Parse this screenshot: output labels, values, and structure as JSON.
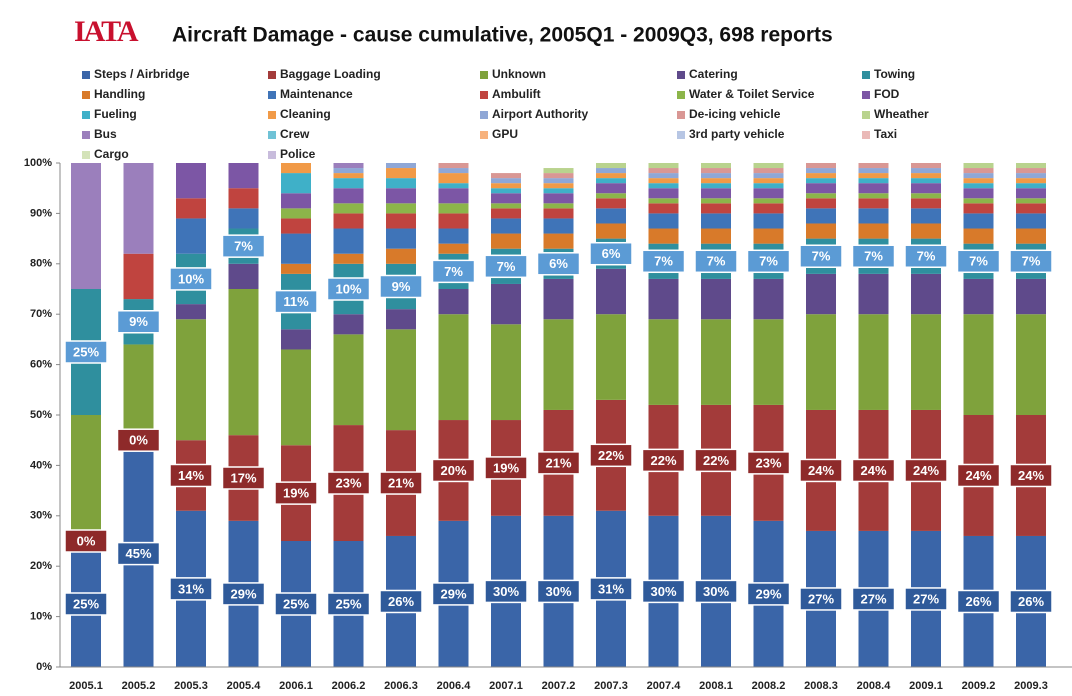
{
  "logo": "IATA",
  "chart_data": {
    "type": "stacked_bar",
    "title": "Aircraft Damage - cause cumulative, 2005Q1 - 2009Q3, 698 reports",
    "categories": [
      "2005.1",
      "2005.2",
      "2005.3",
      "2005.4",
      "2006.1",
      "2006.2",
      "2006.3",
      "2006.4",
      "2007.1",
      "2007.2",
      "2007.3",
      "2007.4",
      "2008.1",
      "2008.2",
      "2008.3",
      "2008.4",
      "2009.1",
      "2009.2",
      "2009.3"
    ],
    "ylim": [
      0,
      100
    ],
    "yticks": [
      {
        "value": 0,
        "label": "0%"
      },
      {
        "value": 10,
        "label": "10%"
      },
      {
        "value": 20,
        "label": "20%"
      },
      {
        "value": 30,
        "label": "30%"
      },
      {
        "value": 40,
        "label": "40%"
      },
      {
        "value": 50,
        "label": "50%"
      },
      {
        "value": 60,
        "label": "60%"
      },
      {
        "value": 70,
        "label": "70%"
      },
      {
        "value": 80,
        "label": "80%"
      },
      {
        "value": 90,
        "label": "90%"
      },
      {
        "value": 100,
        "label": "100%"
      }
    ],
    "series": [
      {
        "name": "Steps / Airbridge",
        "color": "#3a65a8",
        "label_color": "#2f5a9a",
        "values": [
          25,
          45,
          31,
          29,
          25,
          25,
          26,
          29,
          30,
          30,
          31,
          30,
          30,
          29,
          27,
          27,
          27,
          26,
          26
        ],
        "value_labels": [
          "25%",
          "45%",
          "31%",
          "29%",
          "25%",
          "25%",
          "26%",
          "29%",
          "30%",
          "30%",
          "31%",
          "30%",
          "30%",
          "29%",
          "27%",
          "27%",
          "27%",
          "26%",
          "26%"
        ]
      },
      {
        "name": "Baggage Loading",
        "color": "#a33b3a",
        "label_color": "#8e2a2a",
        "values": [
          0,
          0,
          14,
          17,
          19,
          23,
          21,
          20,
          19,
          21,
          22,
          22,
          22,
          23,
          24,
          24,
          24,
          24,
          24
        ],
        "value_labels": [
          "0%",
          "0%",
          "14%",
          "17%",
          "19%",
          "23%",
          "21%",
          "20%",
          "19%",
          "21%",
          "22%",
          "22%",
          "22%",
          "23%",
          "24%",
          "24%",
          "24%",
          "24%",
          "24%"
        ]
      },
      {
        "name": "Unknown",
        "color": "#7fa23c",
        "values": [
          25,
          19,
          24,
          29,
          19,
          18,
          20,
          21,
          19,
          18,
          17,
          17,
          17,
          17,
          19,
          19,
          19,
          20,
          20
        ]
      },
      {
        "name": "Catering",
        "color": "#5f4a8b",
        "values": [
          0,
          0,
          3,
          5,
          4,
          4,
          4,
          5,
          8,
          8,
          9,
          8,
          8,
          8,
          8,
          8,
          8,
          7,
          7
        ]
      },
      {
        "name": "Towing",
        "color": "#2f8f9e",
        "label_color": "#5b9bd5",
        "values": [
          25,
          9,
          10,
          7,
          11,
          10,
          9,
          7,
          7,
          6,
          6,
          7,
          7,
          7,
          7,
          7,
          7,
          7,
          7
        ],
        "value_labels": [
          "25%",
          "9%",
          "10%",
          "7%",
          "11%",
          "10%",
          "9%",
          "7%",
          "7%",
          "6%",
          "6%",
          "7%",
          "7%",
          "7%",
          "7%",
          "7%",
          "7%",
          "7%",
          "7%"
        ]
      },
      {
        "name": "Handling",
        "color": "#d87a2a",
        "values": [
          0,
          0,
          0,
          0,
          2,
          2,
          3,
          2,
          3,
          3,
          3,
          3,
          3,
          3,
          3,
          3,
          3,
          3,
          3
        ]
      },
      {
        "name": "Maintenance",
        "color": "#3f74b8",
        "values": [
          0,
          0,
          7,
          4,
          6,
          5,
          4,
          3,
          3,
          3,
          3,
          3,
          3,
          3,
          3,
          3,
          3,
          3,
          3
        ]
      },
      {
        "name": "Ambulift",
        "color": "#c0443f",
        "values": [
          0,
          9,
          4,
          4,
          3,
          3,
          3,
          3,
          2,
          2,
          2,
          2,
          2,
          2,
          2,
          2,
          2,
          2,
          2
        ]
      },
      {
        "name": "Water & Toilet Service",
        "color": "#8cb54a",
        "values": [
          0,
          0,
          0,
          0,
          2,
          2,
          2,
          2,
          1,
          1,
          1,
          1,
          1,
          1,
          1,
          1,
          1,
          1,
          1
        ]
      },
      {
        "name": "FOD",
        "color": "#7c56a5",
        "values": [
          0,
          0,
          7,
          5,
          3,
          3,
          3,
          3,
          2,
          2,
          2,
          2,
          2,
          2,
          2,
          2,
          2,
          2,
          2
        ]
      },
      {
        "name": "Fueling",
        "color": "#3fb0c8",
        "values": [
          0,
          0,
          0,
          0,
          4,
          2,
          2,
          1,
          1,
          1,
          1,
          1,
          1,
          1,
          1,
          1,
          1,
          1,
          1
        ]
      },
      {
        "name": "Cleaning",
        "color": "#f19a47",
        "values": [
          0,
          0,
          0,
          0,
          2,
          1,
          2,
          2,
          1,
          1,
          1,
          1,
          1,
          1,
          1,
          1,
          1,
          1,
          1
        ]
      },
      {
        "name": "Airport Authority",
        "color": "#8fa7d6",
        "values": [
          0,
          0,
          0,
          0,
          0,
          1,
          1,
          1,
          1,
          1,
          1,
          1,
          1,
          1,
          1,
          1,
          1,
          1,
          1
        ]
      },
      {
        "name": "De-icing vehicle",
        "color": "#d99794",
        "values": [
          0,
          0,
          0,
          0,
          0,
          0,
          0,
          1,
          1,
          1,
          0,
          1,
          1,
          1,
          1,
          1,
          1,
          1,
          1
        ]
      },
      {
        "name": "Wheather",
        "color": "#b9d38e",
        "values": [
          0,
          0,
          0,
          0,
          0,
          0,
          0,
          0,
          0,
          1,
          1,
          1,
          1,
          1,
          1,
          1,
          1,
          1,
          1
        ]
      },
      {
        "name": "Bus",
        "color": "#9b7fbc",
        "values": [
          25,
          18,
          0,
          0,
          0,
          1,
          0,
          0,
          0,
          0,
          0,
          0,
          0,
          0,
          0,
          0,
          0,
          0,
          0
        ]
      },
      {
        "name": "Crew",
        "color": "#6fc2d6",
        "values": [
          0,
          0,
          0,
          0,
          0,
          0,
          0,
          0,
          0,
          0,
          0,
          0,
          1,
          1,
          0,
          0,
          0,
          0,
          0
        ]
      },
      {
        "name": "GPU",
        "color": "#f7b27d",
        "values": [
          0,
          0,
          0,
          0,
          0,
          0,
          0,
          0,
          0,
          0,
          0,
          0,
          0,
          0,
          0,
          0,
          0,
          0,
          0
        ]
      },
      {
        "name": "3rd party vehicle",
        "color": "#b7c6e4",
        "values": [
          0,
          0,
          0,
          0,
          0,
          0,
          0,
          0,
          0,
          0,
          0,
          0,
          0,
          0,
          0,
          0,
          0,
          0,
          0
        ]
      },
      {
        "name": "Taxi",
        "color": "#eab9b7",
        "values": [
          0,
          0,
          0,
          0,
          0,
          0,
          0,
          0,
          0,
          0,
          0,
          0,
          0,
          0,
          0,
          0,
          0,
          0,
          0
        ]
      },
      {
        "name": "Cargo",
        "color": "#d4e3b9",
        "values": [
          0,
          0,
          0,
          0,
          0,
          0,
          0,
          0,
          0,
          0,
          0,
          0,
          0,
          0,
          0,
          0,
          0,
          0,
          0
        ]
      },
      {
        "name": "Police",
        "color": "#c8bcdc",
        "values": [
          0,
          0,
          0,
          0,
          0,
          0,
          0,
          0,
          0,
          0,
          0,
          0,
          0,
          0,
          0,
          0,
          0,
          0,
          0
        ]
      }
    ],
    "legend_columns": 5
  }
}
